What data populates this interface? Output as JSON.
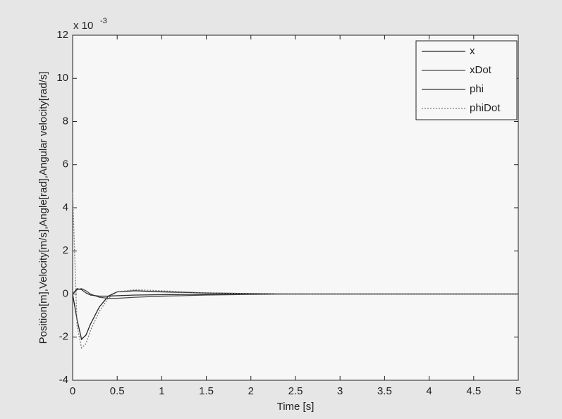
{
  "chart_data": {
    "type": "line",
    "xlabel": "Time [s]",
    "ylabel": "Position[m],Velocity[m/s],Angle[rad],Angular velocity[rad/s]",
    "y_multiplier": {
      "base": "x 10",
      "exponent": "-3"
    },
    "x": [
      0,
      0.05,
      0.1,
      0.15,
      0.2,
      0.3,
      0.4,
      0.5,
      0.7,
      1,
      1.5,
      2,
      2.4,
      3,
      4,
      5
    ],
    "series": [
      {
        "name": "x",
        "color": "#222222",
        "linestyle": "solid",
        "values": [
          0,
          -1.2,
          -2.1,
          -1.9,
          -1.4,
          -0.6,
          -0.1,
          0.1,
          0.15,
          0.1,
          0.05,
          0.02,
          0,
          0,
          0,
          0
        ]
      },
      {
        "name": "xDot",
        "color": "#4a4a4a",
        "linestyle": "solid",
        "values": [
          0,
          0.2,
          0.25,
          0.15,
          0,
          -0.15,
          -0.2,
          -0.2,
          -0.15,
          -0.1,
          -0.05,
          -0.02,
          0,
          0,
          0,
          0
        ]
      },
      {
        "name": "phi",
        "color": "#333333",
        "linestyle": "solid",
        "values": [
          0,
          0.25,
          0.2,
          0.05,
          -0.05,
          -0.1,
          -0.1,
          -0.08,
          -0.05,
          -0.03,
          -0.01,
          0,
          0,
          0,
          0,
          0
        ]
      },
      {
        "name": "phiDot",
        "color": "#7a7a7a",
        "linestyle": "dotted",
        "values": [
          4.7,
          -1.5,
          -2.5,
          -2.3,
          -1.7,
          -0.8,
          -0.2,
          0.1,
          0.2,
          0.15,
          0.05,
          0.02,
          0.01,
          0,
          0,
          0
        ]
      }
    ],
    "xlim": [
      0,
      5
    ],
    "xticks": [
      0,
      0.5,
      1,
      1.5,
      2,
      2.5,
      3,
      3.5,
      4,
      4.5,
      5
    ],
    "ylim": [
      -4,
      12
    ],
    "yticks": [
      -4,
      -2,
      0,
      2,
      4,
      6,
      8,
      10,
      12
    ],
    "grid": false,
    "legend": "upper right"
  }
}
